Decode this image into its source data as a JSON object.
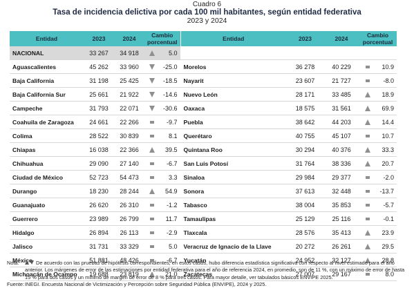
{
  "caption": {
    "label": "Cuadro 6",
    "title": "Tasa de incidencia delictiva por cada 100 mil habitantes, según entidad federativa",
    "years": "2023 y 2024"
  },
  "headers": {
    "entidad": "Entidad",
    "y2023": "2023",
    "y2024": "2024",
    "cambio": "Cambio porcentual"
  },
  "national": {
    "name": "NACIONAL",
    "v2023": "33 267",
    "v2024": "34 918",
    "ind": "up",
    "pct": "5.0"
  },
  "left_rows": [
    {
      "name": "Aguascalientes",
      "v2023": "45 262",
      "v2024": "33 960",
      "ind": "down",
      "pct": "-25.0"
    },
    {
      "name": "Baja California",
      "v2023": "31 198",
      "v2024": "25 425",
      "ind": "down",
      "pct": "-18.5"
    },
    {
      "name": "Baja California Sur",
      "v2023": "25 661",
      "v2024": "21 922",
      "ind": "down",
      "pct": "-14.6"
    },
    {
      "name": "Campeche",
      "v2023": "31 793",
      "v2024": "22 071",
      "ind": "down",
      "pct": "-30.6"
    },
    {
      "name": "Coahuila de Zaragoza",
      "v2023": "24 661",
      "v2024": "22 266",
      "ind": "eq",
      "pct": "-9.7"
    },
    {
      "name": "Colima",
      "v2023": "28 522",
      "v2024": "30 839",
      "ind": "eq",
      "pct": "8.1"
    },
    {
      "name": "Chiapas",
      "v2023": "16 038",
      "v2024": "22 366",
      "ind": "up",
      "pct": "39.5"
    },
    {
      "name": "Chihuahua",
      "v2023": "29 090",
      "v2024": "27 140",
      "ind": "eq",
      "pct": "-6.7"
    },
    {
      "name": "Ciudad de México",
      "v2023": "52 723",
      "v2024": "54 473",
      "ind": "eq",
      "pct": "3.3"
    },
    {
      "name": "Durango",
      "v2023": "18 230",
      "v2024": "28 244",
      "ind": "up",
      "pct": "54.9"
    },
    {
      "name": "Guanajuato",
      "v2023": "26 620",
      "v2024": "26 310",
      "ind": "eq",
      "pct": "-1.2"
    },
    {
      "name": "Guerrero",
      "v2023": "23 989",
      "v2024": "26 799",
      "ind": "eq",
      "pct": "11.7"
    },
    {
      "name": "Hidalgo",
      "v2023": "26 894",
      "v2024": "26 113",
      "ind": "eq",
      "pct": "-2.9"
    },
    {
      "name": "Jalisco",
      "v2023": "31 731",
      "v2024": "33 329",
      "ind": "eq",
      "pct": "5.0"
    },
    {
      "name": "México",
      "v2023": "51 881",
      "v2024": "48 426",
      "ind": "eq",
      "pct": "-6.7"
    },
    {
      "name": "Michoacán de Ocampo",
      "v2023": "19 688",
      "v2024": "23 819",
      "ind": "up",
      "pct": "21.0"
    }
  ],
  "right_rows": [
    {
      "name": "Morelos",
      "v2023": "36 278",
      "v2024": "40 229",
      "ind": "eq",
      "pct": "10.9"
    },
    {
      "name": "Nayarit",
      "v2023": "23 607",
      "v2024": "21 727",
      "ind": "eq",
      "pct": "-8.0"
    },
    {
      "name": "Nuevo León",
      "v2023": "28 171",
      "v2024": "33 485",
      "ind": "up",
      "pct": "18.9"
    },
    {
      "name": "Oaxaca",
      "v2023": "18 575",
      "v2024": "31 561",
      "ind": "up",
      "pct": "69.9"
    },
    {
      "name": "Puebla",
      "v2023": "38 642",
      "v2024": "44 203",
      "ind": "up",
      "pct": "14.4"
    },
    {
      "name": "Querétaro",
      "v2023": "40 755",
      "v2024": "45 107",
      "ind": "eq",
      "pct": "10.7"
    },
    {
      "name": "Quintana Roo",
      "v2023": "30 294",
      "v2024": "40 376",
      "ind": "up",
      "pct": "33.3"
    },
    {
      "name": "San Luis Potosí",
      "v2023": "31 764",
      "v2024": "38 336",
      "ind": "up",
      "pct": "20.7"
    },
    {
      "name": "Sinaloa",
      "v2023": "29 984",
      "v2024": "29 377",
      "ind": "eq",
      "pct": "-2.0"
    },
    {
      "name": "Sonora",
      "v2023": "37 613",
      "v2024": "32 448",
      "ind": "eq",
      "pct": "-13.7"
    },
    {
      "name": "Tabasco",
      "v2023": "38 004",
      "v2024": "35 853",
      "ind": "eq",
      "pct": "-5.7"
    },
    {
      "name": "Tamaulipas",
      "v2023": "25 129",
      "v2024": "25 116",
      "ind": "eq",
      "pct": "-0.1"
    },
    {
      "name": "Tlaxcala",
      "v2023": "28 576",
      "v2024": "35 413",
      "ind": "up",
      "pct": "23.9"
    },
    {
      "name": "Veracruz de Ignacio de la Llave",
      "v2023": "20 272",
      "v2024": "26 261",
      "ind": "up",
      "pct": "29.5"
    },
    {
      "name": "Yucatán",
      "v2023": "24 952",
      "v2024": "32 127",
      "ind": "up",
      "pct": "28.8"
    },
    {
      "name": "Zacatecas",
      "v2023": "27 007",
      "v2024": "29 167",
      "ind": "eq",
      "pct": "8.0"
    }
  ],
  "notes": {
    "nota_label": "Nota:",
    "nota_text": "De acuerdo con las pruebas de hipótesis correspondientes, en estos casos, hubo diferencia estadística significativa con respecto al nivel estimado para el año anterior. Los márgenes de error de las estimaciones por entidad federativa para el año de referencia 2024, en promedio, son de 11 %, con un máximo de error de hasta 15 % para dos casos y un mínimo de margen de error de 8 % para tres casos. Para mayor detalle, ver tabulados básicos ENVIPE 2025.",
    "fuente_label": "Fuente:",
    "fuente_text": "INEGI. Encuesta Nacional de Victimización y Percepción sobre Seguridad Pública (ENVIPE), 2024 y 2025."
  },
  "colors": {
    "header_bg": "#4bbfc2",
    "national_bg": "#d9d9d9",
    "indicator": "#8f8f8f"
  }
}
